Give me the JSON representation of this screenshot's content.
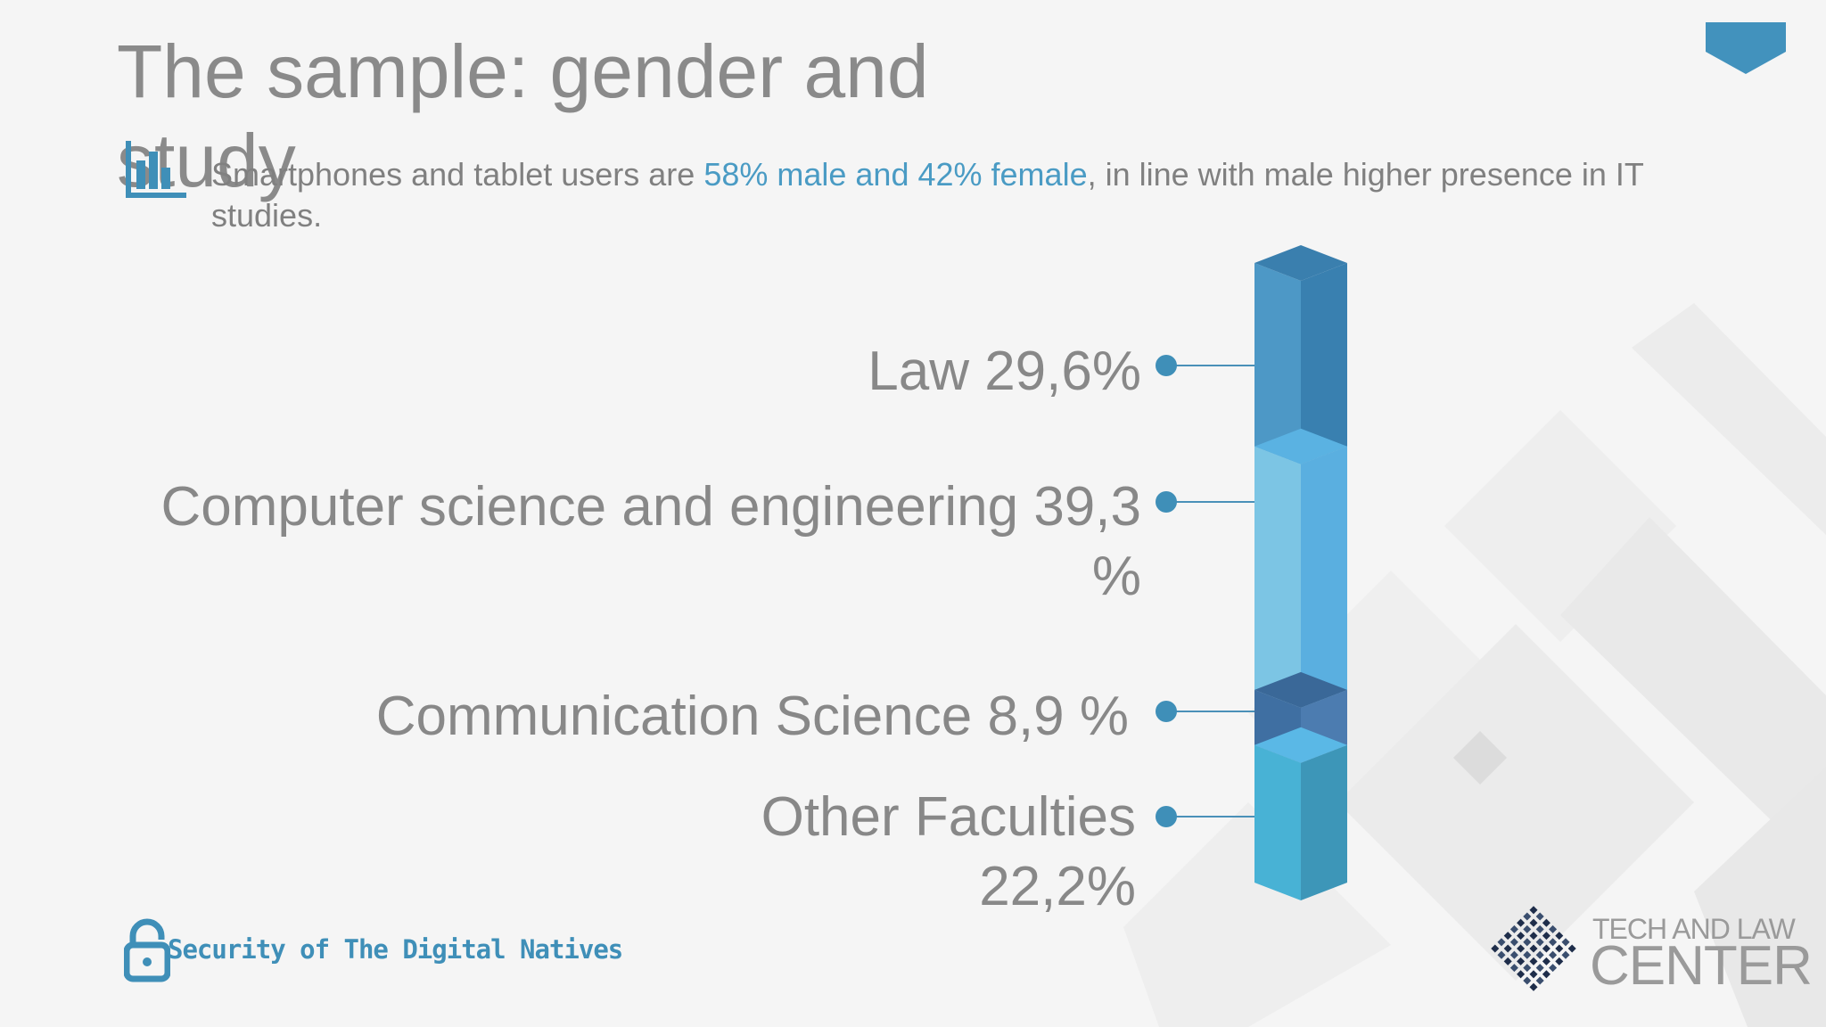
{
  "slide": {
    "title": "The sample: gender and study",
    "subtitle_before": "Smartphones and tablet users are ",
    "subtitle_highlight": "58% male and 42% female",
    "subtitle_after": ", in line with male higher presence in IT studies."
  },
  "chart_data": {
    "type": "bar",
    "categories": [
      "Law",
      "Computer science and engineering",
      "Communication Science",
      "Other Faculties"
    ],
    "values": [
      29.6,
      39.3,
      8.9,
      22.2
    ],
    "unit": "%",
    "labels": [
      "Law 29,6%",
      "Computer science and engineering 39,3 %",
      "Communication Science 8,9 %",
      "Other Faculties 22,2%"
    ]
  },
  "footer": {
    "project_name": "Security of The Digital Natives"
  },
  "logo": {
    "line1": "TECH AND LAW",
    "line2": "CENTER"
  },
  "colors": {
    "accent": "#4a9bc4",
    "segments_front": [
      "#4d98c6",
      "#7cc5e4",
      "#3f6fa2",
      "#48b2d5"
    ],
    "segments_side": [
      "#3980b0",
      "#5aafe0",
      "#4c7cb0",
      "#3d96b8"
    ],
    "segments_top": [
      "#3a7fae",
      "#5ab2e2",
      "#3a6898",
      "#5ab8e6"
    ]
  },
  "icons": {
    "chart": "bar-chart-icon",
    "lock": "unlock-icon",
    "globe": "globe-logo-icon",
    "tab": "corner-tab-icon"
  }
}
